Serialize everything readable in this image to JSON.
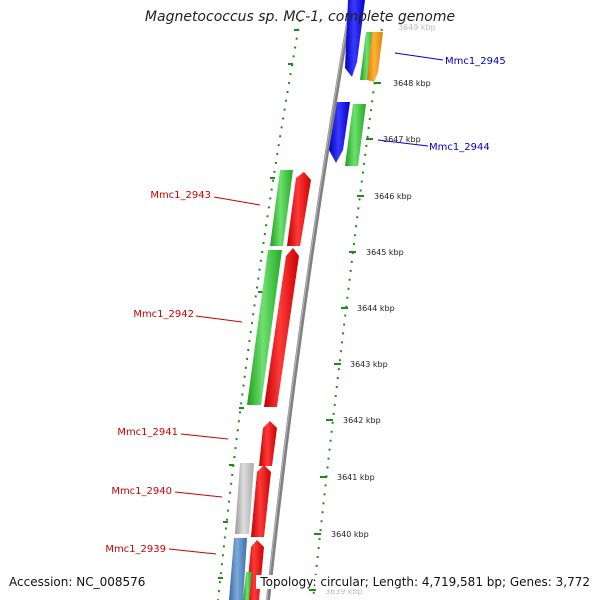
{
  "title": "Magnetococcus sp. MC-1, complete genome",
  "footer": {
    "accession": "Accession: NC_008576",
    "summary": "Topology: circular; Length: 4,719,581 bp; Genes: 3,772"
  },
  "ticks": [
    {
      "label": "3649 kbp",
      "faded": true
    },
    {
      "label": "3648 kbp",
      "faded": false
    },
    {
      "label": "3647 kbp",
      "faded": false
    },
    {
      "label": "3646 kbp",
      "faded": false
    },
    {
      "label": "3645 kbp",
      "faded": false
    },
    {
      "label": "3644 kbp",
      "faded": false
    },
    {
      "label": "3643 kbp",
      "faded": false
    },
    {
      "label": "3642 kbp",
      "faded": false
    },
    {
      "label": "3641 kbp",
      "faded": false
    },
    {
      "label": "3640 kbp",
      "faded": false
    },
    {
      "label": "3639 kbp",
      "faded": true
    }
  ],
  "gene_labels": [
    {
      "text": "Mmc1_2945",
      "color": "#0000cc"
    },
    {
      "text": "Mmc1_2944",
      "color": "#0000cc"
    },
    {
      "text": "Mmc1_2943",
      "color": "#cc0000"
    },
    {
      "text": "Mmc1_2942",
      "color": "#cc0000"
    },
    {
      "text": "Mmc1_2941",
      "color": "#cc0000"
    },
    {
      "text": "Mmc1_2940",
      "color": "#cc0000"
    },
    {
      "text": "Mmc1_2939",
      "color": "#cc0000"
    }
  ],
  "colors": {
    "backbone": "#8c8c8c",
    "dotted_ring": "#1f8a1f",
    "blue_cds": "#1111ee",
    "green_cds": "#33cc33",
    "orange_cds": "#ff9900",
    "red_cds": "#ee0000",
    "grey_cds": "#bbbbbb",
    "steelblue_cds": "#4f83bf"
  }
}
